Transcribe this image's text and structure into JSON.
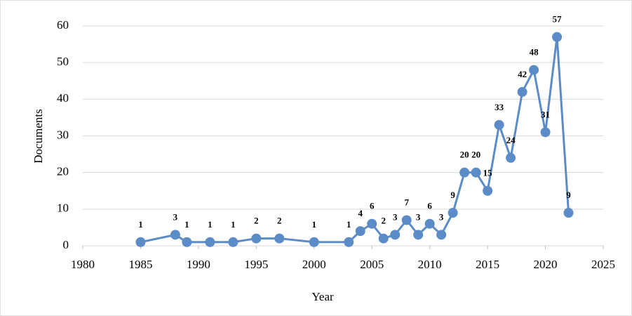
{
  "chart_data": {
    "type": "line",
    "x_label": "Year",
    "y_label": "Documents",
    "x": [
      1985,
      1988,
      1989,
      1991,
      1993,
      1995,
      1997,
      2000,
      2003,
      2004,
      2005,
      2006,
      2007,
      2008,
      2009,
      2010,
      2011,
      2012,
      2013,
      2014,
      2015,
      2016,
      2017,
      2018,
      2019,
      2020,
      2021,
      2022
    ],
    "series": [
      {
        "color": "#5b8cc8",
        "values": [
          1,
          3,
          1,
          1,
          1,
          2,
          2,
          1,
          1,
          4,
          6,
          2,
          3,
          7,
          3,
          6,
          3,
          9,
          20,
          20,
          15,
          33,
          24,
          42,
          48,
          31,
          57,
          9
        ]
      }
    ],
    "xlim": [
      1980,
      2025
    ],
    "xticks": [
      1980,
      1985,
      1990,
      1995,
      2000,
      2005,
      2010,
      2015,
      2020,
      2025
    ],
    "ylim": [
      0,
      60
    ],
    "yticks": [
      0,
      10,
      20,
      30,
      40,
      50,
      60
    ],
    "grid": true
  }
}
